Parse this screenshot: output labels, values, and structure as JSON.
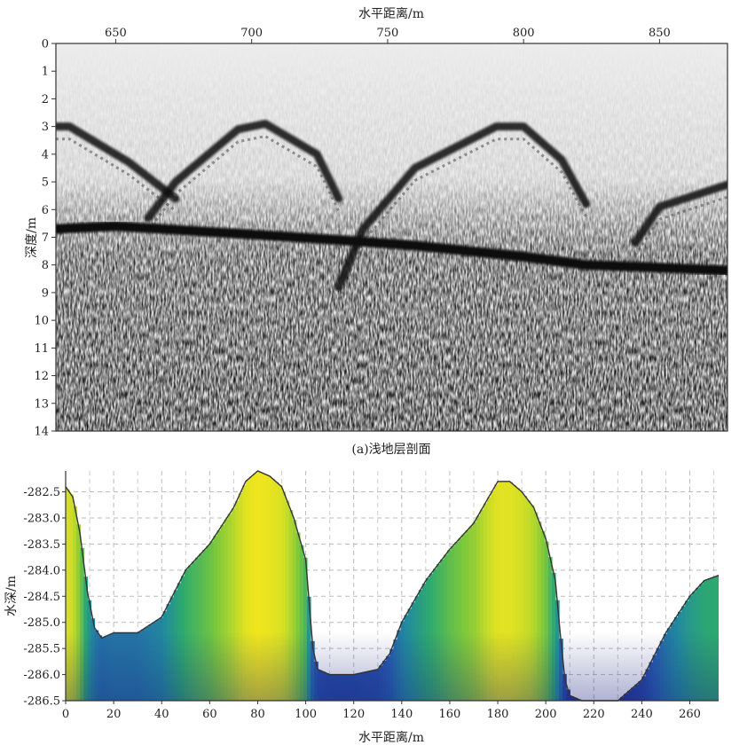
{
  "top_panel": {
    "xlabel": "水平距离/m",
    "ylabel": "深度/m",
    "caption": "(a)浅地层剖面",
    "xticks": [
      "650",
      "700",
      "750",
      "800",
      "850"
    ],
    "yticks": [
      "0",
      "1",
      "2",
      "3",
      "4",
      "5",
      "6",
      "7",
      "8",
      "9",
      "10",
      "11",
      "12",
      "13",
      "14"
    ]
  },
  "bottom_panel": {
    "xlabel": "水平距离/m",
    "ylabel": "水深/m",
    "xticks": [
      "0",
      "20",
      "40",
      "60",
      "80",
      "100",
      "120",
      "140",
      "160",
      "180",
      "200",
      "220",
      "240",
      "260"
    ],
    "yticks": [
      "-282.5",
      "-283.0",
      "-283.5",
      "-284.0",
      "-284.5",
      "-285.0",
      "-285.5",
      "-286.0",
      "-286.5"
    ]
  },
  "chart_data": [
    {
      "type": "heatmap",
      "xlabel": "水平距离/m",
      "ylabel": "深度/m",
      "caption": "(a)浅地层剖面",
      "xlim": [
        628,
        875
      ],
      "ylim": [
        0,
        14
      ],
      "y_inverted": true,
      "colormap": "grayscale",
      "reflector_arcs": [
        {
          "x": [
            628,
            633,
            655,
            672
          ],
          "y": [
            3.0,
            3.0,
            4.3,
            5.6
          ]
        },
        {
          "x": [
            662,
            672,
            695,
            705,
            724,
            732
          ],
          "y": [
            6.3,
            5.0,
            3.1,
            2.9,
            4.0,
            5.6
          ]
        },
        {
          "x": [
            732,
            741,
            760,
            790,
            800,
            814,
            823
          ],
          "y": [
            8.8,
            6.7,
            4.5,
            3.0,
            3.0,
            4.2,
            5.8
          ]
        },
        {
          "x": [
            841,
            850,
            875
          ],
          "y": [
            7.2,
            5.9,
            5.1
          ]
        }
      ],
      "seabed_reflector": {
        "x": [
          628,
          650,
          700,
          732,
          760,
          800,
          823,
          850,
          875
        ],
        "y": [
          6.7,
          6.6,
          6.9,
          7.1,
          7.3,
          7.7,
          8.0,
          8.1,
          8.2
        ]
      }
    },
    {
      "type": "area",
      "xlabel": "水平距离/m",
      "ylabel": "水深/m",
      "xlim": [
        0,
        272
      ],
      "ylim": [
        -286.5,
        -282.1
      ],
      "grid": true,
      "colormap": "viridis",
      "x": [
        0,
        3,
        6,
        9,
        12,
        15,
        20,
        30,
        40,
        50,
        60,
        70,
        75,
        80,
        85,
        90,
        95,
        100,
        103,
        105,
        110,
        120,
        130,
        135,
        140,
        150,
        160,
        170,
        175,
        180,
        185,
        190,
        195,
        200,
        204,
        206,
        208,
        210,
        215,
        220,
        230,
        240,
        250,
        260,
        266,
        272
      ],
      "y": [
        -282.4,
        -282.6,
        -283.3,
        -284.4,
        -285.1,
        -285.3,
        -285.2,
        -285.2,
        -284.9,
        -284.0,
        -283.5,
        -282.8,
        -282.3,
        -282.1,
        -282.2,
        -282.4,
        -283.0,
        -283.8,
        -285.5,
        -285.9,
        -286.0,
        -286.0,
        -285.9,
        -285.6,
        -285.0,
        -284.2,
        -283.6,
        -283.1,
        -282.7,
        -282.3,
        -282.3,
        -282.5,
        -282.8,
        -283.4,
        -284.2,
        -285.2,
        -286.1,
        -286.4,
        -286.5,
        -286.5,
        -286.5,
        -286.1,
        -285.2,
        -284.5,
        -284.2,
        -284.1
      ]
    }
  ]
}
